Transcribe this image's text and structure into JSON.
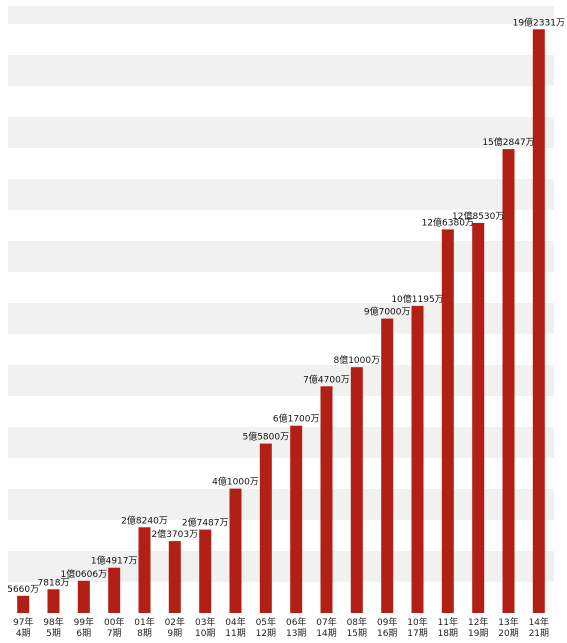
{
  "chart_data": {
    "type": "bar",
    "title": "",
    "xlabel": "",
    "ylabel": "",
    "ylim": [
      0,
      200000
    ],
    "bar_color": "#b11f15",
    "grid_band_color": "#f1f1f1",
    "grid": true,
    "legend": "none",
    "categories": [
      {
        "line1": "97年",
        "line2": "4期"
      },
      {
        "line1": "98年",
        "line2": "5期"
      },
      {
        "line1": "99年",
        "line2": "6期"
      },
      {
        "line1": "00年",
        "line2": "7期"
      },
      {
        "line1": "01年",
        "line2": "8期"
      },
      {
        "line1": "02年",
        "line2": "9期"
      },
      {
        "line1": "03年",
        "line2": "10期"
      },
      {
        "line1": "04年",
        "line2": "11期"
      },
      {
        "line1": "05年",
        "line2": "12期"
      },
      {
        "line1": "06年",
        "line2": "13期"
      },
      {
        "line1": "07年",
        "line2": "14期"
      },
      {
        "line1": "08年",
        "line2": "15期"
      },
      {
        "line1": "09年",
        "line2": "16期"
      },
      {
        "line1": "10年",
        "line2": "17期"
      },
      {
        "line1": "11年",
        "line2": "18期"
      },
      {
        "line1": "12年",
        "line2": "19期"
      },
      {
        "line1": "13年",
        "line2": "20期"
      },
      {
        "line1": "14年",
        "line2": "21期"
      }
    ],
    "values": [
      5660,
      7818,
      10606,
      14917,
      28240,
      23703,
      27487,
      41000,
      55800,
      61700,
      74700,
      81000,
      97000,
      101195,
      126380,
      128530,
      152847,
      192331
    ],
    "value_labels": [
      "5660万",
      "7818万",
      "1億0606万",
      "1億4917万",
      "2億8240万",
      "2億3703万",
      "2億7487万",
      "4億1000万",
      "5億5800万",
      "6億1700万",
      "7億4700万",
      "8億1000万",
      "9億7000万",
      "10億1195万",
      "12億6380万",
      "12億8530万",
      "15億2847万",
      "19億2331万"
    ]
  }
}
